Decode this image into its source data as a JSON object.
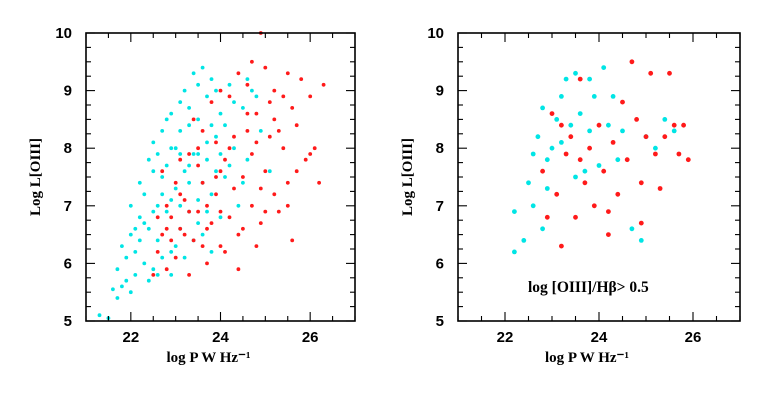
{
  "chart_data": [
    {
      "type": "scatter",
      "title": "",
      "xlabel": "log P  W Hz⁻¹",
      "ylabel": "Log  L[OIII]",
      "xlim": [
        21,
        27
      ],
      "ylim": [
        5,
        10
      ],
      "xticks": [
        22,
        24,
        26
      ],
      "yticks": [
        5,
        6,
        7,
        8,
        9,
        10
      ],
      "annotation": "",
      "series": [
        {
          "name": "cyan",
          "color": "#00e5e5",
          "points": [
            [
              21.3,
              5.1
            ],
            [
              21.5,
              5.05
            ],
            [
              21.6,
              5.55
            ],
            [
              21.7,
              5.4
            ],
            [
              21.8,
              5.6
            ],
            [
              21.9,
              5.7
            ],
            [
              21.7,
              5.9
            ],
            [
              21.9,
              6.1
            ],
            [
              22.0,
              5.5
            ],
            [
              22.1,
              5.8
            ],
            [
              21.8,
              6.3
            ],
            [
              22.0,
              6.5
            ],
            [
              22.1,
              6.2
            ],
            [
              22.2,
              6.8
            ],
            [
              22.0,
              7.0
            ],
            [
              22.2,
              7.4
            ],
            [
              22.3,
              6.0
            ],
            [
              22.4,
              6.6
            ],
            [
              22.3,
              7.2
            ],
            [
              22.5,
              5.9
            ],
            [
              22.4,
              7.8
            ],
            [
              22.5,
              8.1
            ],
            [
              22.6,
              7.0
            ],
            [
              22.6,
              6.4
            ],
            [
              22.7,
              7.5
            ],
            [
              22.7,
              8.3
            ],
            [
              22.8,
              6.9
            ],
            [
              22.8,
              7.7
            ],
            [
              22.9,
              8.6
            ],
            [
              22.9,
              6.2
            ],
            [
              23.0,
              7.3
            ],
            [
              23.0,
              8.0
            ],
            [
              23.1,
              8.8
            ],
            [
              23.1,
              6.6
            ],
            [
              23.2,
              7.6
            ],
            [
              23.2,
              9.0
            ],
            [
              23.3,
              8.4
            ],
            [
              23.3,
              6.9
            ],
            [
              23.4,
              7.9
            ],
            [
              23.4,
              9.3
            ],
            [
              23.5,
              7.1
            ],
            [
              23.5,
              8.5
            ],
            [
              23.6,
              9.4
            ],
            [
              23.6,
              6.5
            ],
            [
              23.7,
              7.8
            ],
            [
              23.7,
              8.9
            ],
            [
              23.8,
              7.2
            ],
            [
              23.8,
              9.2
            ],
            [
              23.9,
              8.2
            ],
            [
              24.0,
              6.8
            ],
            [
              24.0,
              8.6
            ],
            [
              24.1,
              7.5
            ],
            [
              24.2,
              9.1
            ],
            [
              24.3,
              8.0
            ],
            [
              24.4,
              7.0
            ],
            [
              24.5,
              8.7
            ],
            [
              24.6,
              7.8
            ],
            [
              24.7,
              9.0
            ],
            [
              24.9,
              8.3
            ],
            [
              25.1,
              7.6
            ],
            [
              22.6,
              7.9
            ],
            [
              22.8,
              8.5
            ],
            [
              23.0,
              6.3
            ],
            [
              23.2,
              6.1
            ],
            [
              23.4,
              6.4
            ],
            [
              23.6,
              7.4
            ],
            [
              23.8,
              6.2
            ],
            [
              22.2,
              6.4
            ],
            [
              22.4,
              5.7
            ],
            [
              22.6,
              5.8
            ],
            [
              22.9,
              7.1
            ],
            [
              23.1,
              7.9
            ],
            [
              23.3,
              7.7
            ],
            [
              23.5,
              6.7
            ],
            [
              23.7,
              6.9
            ],
            [
              23.9,
              7.6
            ],
            [
              24.1,
              8.4
            ],
            [
              24.3,
              8.8
            ],
            [
              24.5,
              7.4
            ],
            [
              24.8,
              8.9
            ],
            [
              22.5,
              6.9
            ],
            [
              22.7,
              6.1
            ],
            [
              22.9,
              5.8
            ],
            [
              23.1,
              7.0
            ],
            [
              23.3,
              8.7
            ],
            [
              23.5,
              9.1
            ],
            [
              23.7,
              8.1
            ],
            [
              23.9,
              9.0
            ],
            [
              24.2,
              7.7
            ],
            [
              24.6,
              9.2
            ],
            [
              22.1,
              6.6
            ],
            [
              22.3,
              6.7
            ],
            [
              22.5,
              7.6
            ],
            [
              22.7,
              7.2
            ],
            [
              22.9,
              8.0
            ],
            [
              23.1,
              8.3
            ],
            [
              23.3,
              7.4
            ],
            [
              23.5,
              7.9
            ],
            [
              23.8,
              8.4
            ],
            [
              24.0,
              7.9
            ]
          ]
        },
        {
          "name": "red",
          "color": "#ff1a1a",
          "points": [
            [
              22.5,
              5.8
            ],
            [
              22.6,
              6.2
            ],
            [
              22.7,
              6.5
            ],
            [
              22.8,
              5.9
            ],
            [
              22.9,
              6.8
            ],
            [
              23.0,
              6.1
            ],
            [
              23.1,
              6.6
            ],
            [
              23.2,
              7.1
            ],
            [
              23.3,
              5.8
            ],
            [
              23.4,
              6.4
            ],
            [
              23.5,
              6.9
            ],
            [
              23.6,
              7.4
            ],
            [
              23.7,
              6.0
            ],
            [
              23.8,
              6.7
            ],
            [
              23.9,
              7.2
            ],
            [
              24.0,
              6.3
            ],
            [
              24.1,
              7.8
            ],
            [
              24.2,
              6.8
            ],
            [
              24.3,
              8.2
            ],
            [
              24.4,
              6.5
            ],
            [
              24.5,
              7.5
            ],
            [
              24.6,
              8.6
            ],
            [
              24.7,
              7.0
            ],
            [
              24.8,
              8.1
            ],
            [
              24.9,
              6.7
            ],
            [
              25.0,
              7.6
            ],
            [
              25.1,
              8.8
            ],
            [
              25.2,
              7.2
            ],
            [
              25.3,
              6.9
            ],
            [
              25.4,
              8.0
            ],
            [
              25.5,
              7.4
            ],
            [
              25.6,
              6.4
            ],
            [
              25.7,
              8.4
            ],
            [
              25.9,
              7.8
            ],
            [
              26.0,
              8.9
            ],
            [
              26.2,
              7.4
            ],
            [
              26.3,
              9.1
            ],
            [
              26.1,
              8.0
            ],
            [
              25.8,
              9.2
            ],
            [
              25.5,
              9.3
            ],
            [
              25.0,
              9.4
            ],
            [
              24.7,
              9.5
            ],
            [
              24.9,
              10.0
            ],
            [
              24.4,
              9.3
            ],
            [
              24.0,
              9.0
            ],
            [
              23.6,
              8.3
            ],
            [
              23.3,
              7.9
            ],
            [
              23.0,
              7.4
            ],
            [
              22.8,
              7.0
            ],
            [
              22.6,
              6.8
            ],
            [
              23.4,
              8.5
            ],
            [
              23.8,
              8.8
            ],
            [
              24.2,
              8.9
            ],
            [
              24.6,
              9.1
            ],
            [
              25.2,
              8.5
            ],
            [
              25.6,
              8.7
            ],
            [
              22.7,
              7.6
            ],
            [
              23.1,
              7.8
            ],
            [
              23.5,
              7.7
            ],
            [
              23.9,
              8.1
            ],
            [
              24.3,
              7.3
            ],
            [
              24.7,
              7.9
            ],
            [
              25.1,
              8.2
            ],
            [
              25.5,
              7.0
            ],
            [
              24.8,
              6.3
            ],
            [
              24.4,
              5.9
            ],
            [
              24.0,
              6.9
            ],
            [
              23.6,
              6.3
            ],
            [
              23.2,
              6.5
            ],
            [
              22.9,
              6.4
            ],
            [
              25.3,
              8.3
            ],
            [
              25.7,
              7.6
            ],
            [
              26.0,
              7.9
            ],
            [
              24.9,
              7.3
            ],
            [
              24.5,
              6.6
            ],
            [
              24.1,
              6.2
            ],
            [
              23.7,
              6.6
            ],
            [
              23.3,
              6.9
            ],
            [
              22.8,
              6.6
            ],
            [
              25.0,
              6.9
            ],
            [
              24.2,
              8.0
            ],
            [
              24.6,
              8.3
            ],
            [
              25.4,
              8.9
            ],
            [
              23.9,
              7.5
            ],
            [
              23.5,
              8.0
            ],
            [
              23.1,
              7.2
            ],
            [
              24.8,
              8.6
            ],
            [
              25.2,
              9.0
            ],
            [
              24.0,
              7.6
            ],
            [
              23.7,
              7.0
            ]
          ]
        }
      ]
    },
    {
      "type": "scatter",
      "title": "",
      "xlabel": "log P  W Hz⁻¹",
      "ylabel": "Log  L[OIII]",
      "xlim": [
        21,
        27
      ],
      "ylim": [
        5,
        10
      ],
      "xticks": [
        22,
        24,
        26
      ],
      "yticks": [
        5,
        6,
        7,
        8,
        9,
        10
      ],
      "annotation": "log [OIII]/Hβ> 0.5",
      "series": [
        {
          "name": "cyan",
          "color": "#00e5e5",
          "points": [
            [
              22.2,
              6.2
            ],
            [
              22.2,
              6.9
            ],
            [
              22.4,
              6.4
            ],
            [
              22.5,
              7.4
            ],
            [
              22.6,
              7.9
            ],
            [
              22.7,
              8.2
            ],
            [
              22.8,
              8.7
            ],
            [
              22.8,
              6.6
            ],
            [
              22.9,
              7.8
            ],
            [
              23.0,
              8.0
            ],
            [
              23.1,
              8.5
            ],
            [
              23.2,
              8.9
            ],
            [
              23.3,
              9.2
            ],
            [
              23.4,
              8.4
            ],
            [
              23.5,
              9.3
            ],
            [
              23.6,
              8.6
            ],
            [
              23.7,
              7.6
            ],
            [
              23.8,
              8.3
            ],
            [
              23.9,
              8.9
            ],
            [
              24.0,
              7.7
            ],
            [
              24.1,
              9.4
            ],
            [
              24.2,
              8.4
            ],
            [
              24.4,
              7.8
            ],
            [
              24.5,
              8.3
            ],
            [
              24.7,
              6.6
            ],
            [
              24.9,
              6.4
            ],
            [
              25.0,
              8.2
            ],
            [
              25.2,
              8.0
            ],
            [
              25.4,
              8.5
            ],
            [
              25.6,
              8.3
            ],
            [
              22.6,
              7.0
            ],
            [
              22.9,
              7.3
            ],
            [
              23.2,
              8.1
            ],
            [
              23.5,
              7.5
            ],
            [
              23.8,
              9.2
            ],
            [
              24.3,
              8.9
            ]
          ]
        },
        {
          "name": "red",
          "color": "#ff1a1a",
          "points": [
            [
              22.8,
              7.6
            ],
            [
              22.9,
              6.8
            ],
            [
              23.0,
              8.6
            ],
            [
              23.1,
              7.2
            ],
            [
              23.2,
              6.3
            ],
            [
              23.3,
              7.9
            ],
            [
              23.4,
              8.2
            ],
            [
              23.5,
              6.8
            ],
            [
              23.6,
              9.2
            ],
            [
              23.7,
              7.4
            ],
            [
              23.8,
              8.0
            ],
            [
              23.9,
              7.0
            ],
            [
              24.0,
              8.4
            ],
            [
              24.1,
              7.6
            ],
            [
              24.2,
              6.9
            ],
            [
              24.3,
              8.1
            ],
            [
              24.4,
              7.2
            ],
            [
              24.5,
              8.8
            ],
            [
              24.6,
              7.8
            ],
            [
              24.7,
              9.5
            ],
            [
              24.8,
              8.5
            ],
            [
              24.9,
              7.4
            ],
            [
              25.0,
              8.2
            ],
            [
              25.1,
              9.3
            ],
            [
              25.2,
              7.9
            ],
            [
              25.3,
              7.3
            ],
            [
              25.4,
              8.2
            ],
            [
              25.5,
              9.3
            ],
            [
              25.6,
              8.4
            ],
            [
              25.7,
              7.9
            ],
            [
              25.9,
              7.8
            ],
            [
              25.8,
              8.4
            ],
            [
              24.9,
              6.7
            ],
            [
              24.2,
              6.5
            ],
            [
              23.6,
              7.8
            ],
            [
              23.2,
              8.4
            ]
          ]
        }
      ]
    }
  ]
}
